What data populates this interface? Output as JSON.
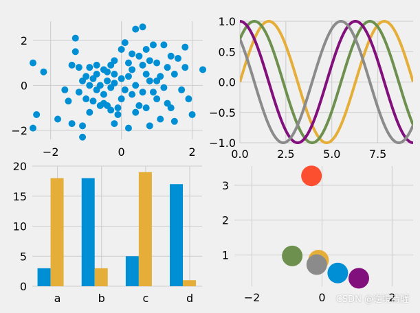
{
  "watermark": "CSDN @逆境清醒",
  "style": {
    "background": "#f0f0f0",
    "grid_color": "#cbcbcb",
    "colors": [
      "#008fd5",
      "#fc4f30",
      "#e5ae38",
      "#6d904f",
      "#8b8b8b",
      "#810f7c"
    ]
  },
  "chart_data": [
    {
      "id": "scatter",
      "type": "scatter",
      "title": "",
      "xlabel": "",
      "ylabel": "",
      "xlim": [
        -2.5,
        2.3
      ],
      "ylim": [
        -2.4,
        2.85
      ],
      "xticks": [
        -2,
        0,
        2
      ],
      "yticks": [
        -2,
        0,
        2
      ],
      "color": "#008fd5",
      "points": [
        [
          -2.5,
          1.0
        ],
        [
          -2.4,
          -1.3
        ],
        [
          -2.5,
          -1.9
        ],
        [
          -2.2,
          0.6
        ],
        [
          -1.8,
          -1.5
        ],
        [
          -1.5,
          -0.7
        ],
        [
          -1.4,
          0.9
        ],
        [
          -1.4,
          -1.7
        ],
        [
          -1.3,
          2.1
        ],
        [
          -1.3,
          1.5
        ],
        [
          -1.2,
          0.8
        ],
        [
          -1.2,
          -0.3
        ],
        [
          -1.1,
          -1.8
        ],
        [
          -1.1,
          -2.3
        ],
        [
          -1.1,
          0.2
        ],
        [
          -1.0,
          0.4
        ],
        [
          -1.0,
          -0.6
        ],
        [
          -0.9,
          0.0
        ],
        [
          -0.9,
          -1.2
        ],
        [
          -0.8,
          0.3
        ],
        [
          -0.8,
          -0.7
        ],
        [
          -0.7,
          0.9
        ],
        [
          -0.7,
          0.5
        ],
        [
          -0.7,
          -0.2
        ],
        [
          -0.6,
          0.0
        ],
        [
          -0.6,
          -0.9
        ],
        [
          -0.5,
          0.7
        ],
        [
          -0.5,
          -0.4
        ],
        [
          -0.4,
          0.6
        ],
        [
          -0.4,
          0.2
        ],
        [
          -0.4,
          -0.9
        ],
        [
          -0.3,
          0.9
        ],
        [
          -0.3,
          -0.1
        ],
        [
          -0.2,
          0.5
        ],
        [
          -0.2,
          -1.7
        ],
        [
          -0.2,
          0.1
        ],
        [
          -0.1,
          -1.0
        ],
        [
          -0.1,
          -1.3
        ],
        [
          0.0,
          1.6
        ],
        [
          0.0,
          0.3
        ],
        [
          0.0,
          -0.6
        ],
        [
          0.1,
          1.9
        ],
        [
          0.1,
          -0.2
        ],
        [
          0.2,
          1.0
        ],
        [
          0.2,
          -1.9
        ],
        [
          0.2,
          0.4
        ],
        [
          0.3,
          1.4
        ],
        [
          0.3,
          0.7
        ],
        [
          0.3,
          -0.4
        ],
        [
          0.4,
          2.5
        ],
        [
          0.4,
          0.0
        ],
        [
          0.5,
          1.3
        ],
        [
          0.5,
          -0.9
        ],
        [
          0.6,
          2.6
        ],
        [
          0.6,
          0.9
        ],
        [
          0.6,
          -0.3
        ],
        [
          0.7,
          0.5
        ],
        [
          0.7,
          -1.0
        ],
        [
          0.8,
          1.1
        ],
        [
          0.8,
          0.2
        ],
        [
          0.8,
          -1.8
        ],
        [
          0.9,
          1.8
        ],
        [
          0.9,
          -0.3
        ],
        [
          1.0,
          1.0
        ],
        [
          1.0,
          -0.6
        ],
        [
          1.1,
          0.4
        ],
        [
          1.1,
          -1.5
        ],
        [
          1.2,
          1.8
        ],
        [
          1.2,
          -0.1
        ],
        [
          1.3,
          0.8
        ],
        [
          1.3,
          -0.8
        ],
        [
          1.4,
          1.3
        ],
        [
          1.4,
          -1.0
        ],
        [
          1.5,
          0.5
        ],
        [
          1.5,
          -1.6
        ],
        [
          1.6,
          1.2
        ],
        [
          1.7,
          -0.2
        ],
        [
          1.8,
          1.7
        ],
        [
          1.8,
          0.8
        ],
        [
          1.9,
          -0.6
        ],
        [
          2.0,
          -1.3
        ],
        [
          2.3,
          0.7
        ],
        [
          -1.6,
          -0.2
        ],
        [
          -0.2,
          1.1
        ],
        [
          0.4,
          -1.2
        ],
        [
          -0.9,
          0.8
        ],
        [
          1.0,
          0.2
        ],
        [
          -0.3,
          -1.1
        ],
        [
          0.7,
          1.6
        ],
        [
          -0.5,
          -0.8
        ]
      ]
    },
    {
      "id": "sine",
      "type": "line",
      "title": "",
      "xlabel": "",
      "ylabel": "",
      "xlim": [
        0,
        9.42
      ],
      "ylim": [
        -1.0,
        1.0
      ],
      "xticks": [
        0.0,
        2.5,
        5.0,
        7.5
      ],
      "xtick_labels": [
        "0.0",
        "2.5",
        "5.0",
        "7.5"
      ],
      "yticks": [
        -1.0,
        -0.5,
        0.0,
        0.5,
        1.0
      ],
      "ytick_labels": [
        "−1.0",
        "−0.5",
        "0.0",
        "0.5",
        "1.0"
      ],
      "series": [
        {
          "color": "#e5ae38",
          "phase": 0.0
        },
        {
          "color": "#6d904f",
          "phase": 0.7854
        },
        {
          "color": "#810f7c",
          "phase": 1.5708
        },
        {
          "color": "#8b8b8b",
          "phase": 2.3562
        }
      ]
    },
    {
      "id": "bars",
      "type": "bar",
      "title": "",
      "xlabel": "",
      "ylabel": "",
      "categories": [
        "a",
        "b",
        "c",
        "d"
      ],
      "ylim": [
        0,
        20
      ],
      "yticks": [
        0,
        5,
        10,
        15,
        20
      ],
      "series": [
        {
          "color": "#008fd5",
          "values": [
            3,
            18,
            5,
            17
          ]
        },
        {
          "color": "#e5ae38",
          "values": [
            18,
            3,
            19,
            1
          ]
        }
      ]
    },
    {
      "id": "circles",
      "type": "scatter",
      "title": "",
      "xlabel": "",
      "ylabel": "",
      "xlim": [
        -2.5,
        2.6
      ],
      "ylim": [
        0.1,
        3.55
      ],
      "xticks": [
        -2,
        0,
        2
      ],
      "xtick_labels": [
        "−2",
        "0",
        "2"
      ],
      "yticks": [
        1,
        2,
        3
      ],
      "points": [
        {
          "x": -0.3,
          "y": 3.27,
          "color": "#fc4f30"
        },
        {
          "x": -0.85,
          "y": 0.97,
          "color": "#6d904f"
        },
        {
          "x": -0.1,
          "y": 0.85,
          "color": "#e5ae38"
        },
        {
          "x": -0.15,
          "y": 0.72,
          "color": "#8b8b8b"
        },
        {
          "x": 0.45,
          "y": 0.48,
          "color": "#008fd5"
        },
        {
          "x": 1.05,
          "y": 0.33,
          "color": "#810f7c"
        }
      ]
    }
  ]
}
